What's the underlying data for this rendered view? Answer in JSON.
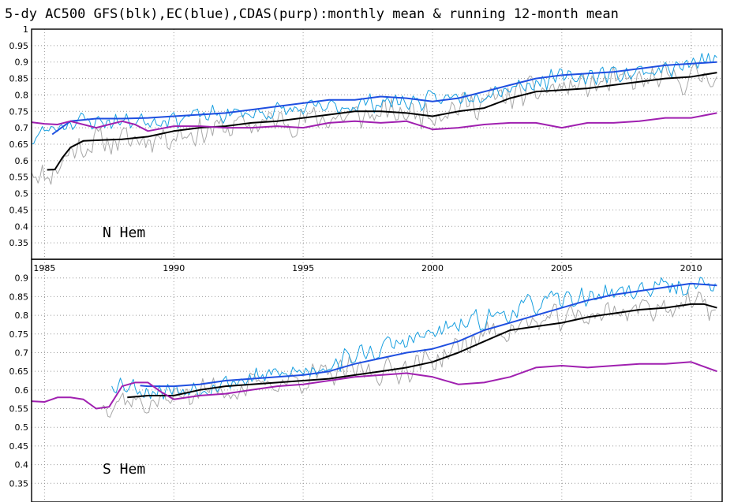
{
  "title": "5-dy AC500 GFS(blk),EC(blue),CDAS(purp):monthly mean & running 12-month mean",
  "chart_data": [
    {
      "type": "line",
      "panel_label": "N Hem",
      "xlim": [
        1984.5,
        2011.2
      ],
      "ylim": [
        0.3,
        1.0
      ],
      "xticks": [
        1985,
        1990,
        1995,
        2000,
        2005,
        2010
      ],
      "xtick_labels": [
        "1985",
        "1990",
        "1995",
        "2000",
        "2005",
        "2010"
      ],
      "yticks": [
        0.35,
        0.4,
        0.45,
        0.5,
        0.55,
        0.6,
        0.65,
        0.7,
        0.75,
        0.8,
        0.85,
        0.9,
        0.95,
        1
      ],
      "ytick_labels": [
        "0.35",
        "0.4",
        "0.45",
        "0.5",
        "0.55",
        "0.6",
        "0.65",
        "0.7",
        "0.75",
        "0.8",
        "0.85",
        "0.9",
        "0.95",
        "1"
      ],
      "grid": true,
      "series": [
        {
          "key": "gfs_monthly",
          "color": "#a8a8a8",
          "width": 1.0,
          "noise": 0.055,
          "seed": 11,
          "x": [
            1984.5,
            1985,
            1985.5,
            1986,
            1987,
            1988,
            1990,
            1992,
            1994,
            1996,
            1998,
            2000,
            2002,
            2004,
            2006,
            2008,
            2010,
            2011
          ],
          "y": [
            0.58,
            0.55,
            0.58,
            0.63,
            0.66,
            0.66,
            0.68,
            0.7,
            0.72,
            0.73,
            0.74,
            0.75,
            0.78,
            0.81,
            0.83,
            0.84,
            0.85,
            0.87
          ]
        },
        {
          "key": "ec_monthly",
          "color": "#1aa0e0",
          "width": 1.0,
          "noise": 0.035,
          "seed": 23,
          "x": [
            1984.5,
            1985,
            1986,
            1988,
            1990,
            1992,
            1994,
            1996,
            1997,
            1998,
            2000,
            2002,
            2004,
            2006,
            2008,
            2010,
            2011
          ],
          "y": [
            0.66,
            0.69,
            0.72,
            0.72,
            0.73,
            0.74,
            0.75,
            0.76,
            0.77,
            0.78,
            0.78,
            0.81,
            0.84,
            0.86,
            0.87,
            0.89,
            0.91
          ]
        },
        {
          "key": "gfs_running",
          "color": "#000000",
          "width": 2.0,
          "x": [
            1985.1,
            1985.4,
            1985.7,
            1986.0,
            1986.5,
            1987.0,
            1988.0,
            1989.0,
            1990.0,
            1991.0,
            1992.0,
            1993.0,
            1994.0,
            1995.0,
            1996.0,
            1997.0,
            1998.0,
            1999.0,
            2000.0,
            2001.0,
            2002.0,
            2003.0,
            2004.0,
            2005.0,
            2006.0,
            2007.0,
            2008.0,
            2009.0,
            2010.0,
            2011.0
          ],
          "y": [
            0.572,
            0.573,
            0.61,
            0.64,
            0.66,
            0.662,
            0.665,
            0.673,
            0.69,
            0.7,
            0.705,
            0.715,
            0.72,
            0.73,
            0.74,
            0.75,
            0.75,
            0.745,
            0.735,
            0.75,
            0.76,
            0.79,
            0.81,
            0.815,
            0.82,
            0.83,
            0.84,
            0.85,
            0.855,
            0.868
          ]
        },
        {
          "key": "ec_running",
          "color": "#1f4fe0",
          "width": 2.0,
          "x": [
            1985.3,
            1986.0,
            1987.0,
            1988.0,
            1989.0,
            1990.0,
            1991.0,
            1992.0,
            1993.0,
            1994.0,
            1995.0,
            1996.0,
            1997.0,
            1998.0,
            1999.0,
            2000.0,
            2001.0,
            2002.0,
            2003.0,
            2004.0,
            2005.0,
            2006.0,
            2007.0,
            2008.0,
            2009.0,
            2010.0,
            2011.0
          ],
          "y": [
            0.68,
            0.72,
            0.728,
            0.728,
            0.73,
            0.735,
            0.74,
            0.745,
            0.755,
            0.765,
            0.775,
            0.785,
            0.785,
            0.795,
            0.79,
            0.78,
            0.79,
            0.81,
            0.83,
            0.85,
            0.86,
            0.865,
            0.87,
            0.88,
            0.89,
            0.895,
            0.9
          ]
        },
        {
          "key": "cdas_running",
          "color": "#a020b0",
          "width": 2.0,
          "x": [
            1984.5,
            1985.0,
            1985.5,
            1986.0,
            1987.0,
            1988.0,
            1988.5,
            1989.0,
            1990.0,
            1991.0,
            1992.0,
            1993.0,
            1994.0,
            1995.0,
            1996.0,
            1997.0,
            1998.0,
            1999.0,
            2000.0,
            2001.0,
            2002.0,
            2003.0,
            2004.0,
            2005.0,
            2006.0,
            2007.0,
            2008.0,
            2009.0,
            2010.0,
            2011.0
          ],
          "y": [
            0.717,
            0.712,
            0.71,
            0.72,
            0.7,
            0.72,
            0.71,
            0.69,
            0.705,
            0.705,
            0.7,
            0.7,
            0.705,
            0.7,
            0.715,
            0.72,
            0.715,
            0.72,
            0.695,
            0.7,
            0.71,
            0.715,
            0.715,
            0.7,
            0.715,
            0.715,
            0.72,
            0.73,
            0.73,
            0.745
          ]
        }
      ]
    },
    {
      "type": "line",
      "panel_label": "S Hem",
      "xlim": [
        1984.5,
        2011.2
      ],
      "ylim": [
        0.3,
        0.95
      ],
      "xticks": [
        1985,
        1990,
        1995,
        2000,
        2005,
        2010
      ],
      "yticks": [
        0.35,
        0.4,
        0.45,
        0.5,
        0.55,
        0.6,
        0.65,
        0.7,
        0.75,
        0.8,
        0.85,
        0.9
      ],
      "ytick_labels": [
        "0.35",
        "0.4",
        "0.45",
        "0.5",
        "0.55",
        "0.6",
        "0.65",
        "0.7",
        "0.75",
        "0.8",
        "0.85",
        "0.9"
      ],
      "grid": true,
      "series": [
        {
          "key": "gfs_monthly",
          "color": "#a8a8a8",
          "width": 1.0,
          "noise": 0.045,
          "seed": 37,
          "x": [
            1987.2,
            1988,
            1989,
            1990,
            1991,
            1992,
            1993,
            1994,
            1995,
            1996,
            1997,
            1998,
            1999,
            2000,
            2001,
            2002,
            2004,
            2006,
            2008,
            2010,
            2011
          ],
          "y": [
            0.56,
            0.58,
            0.56,
            0.58,
            0.6,
            0.6,
            0.61,
            0.62,
            0.63,
            0.64,
            0.65,
            0.65,
            0.66,
            0.68,
            0.71,
            0.75,
            0.78,
            0.8,
            0.82,
            0.83,
            0.82
          ]
        },
        {
          "key": "ec_monthly",
          "color": "#1aa0e0",
          "width": 1.0,
          "noise": 0.035,
          "seed": 53,
          "x": [
            1987.6,
            1988,
            1989,
            1990,
            1991,
            1992,
            1993,
            1994,
            1995,
            1996,
            1997,
            1998,
            1999,
            2000,
            2002,
            2004,
            2006,
            2008,
            2010,
            2011
          ],
          "y": [
            0.62,
            0.62,
            0.6,
            0.6,
            0.61,
            0.62,
            0.63,
            0.64,
            0.65,
            0.67,
            0.69,
            0.71,
            0.73,
            0.75,
            0.79,
            0.83,
            0.85,
            0.87,
            0.88,
            0.89
          ]
        },
        {
          "key": "gfs_running",
          "color": "#000000",
          "width": 2.0,
          "x": [
            1988.2,
            1989.0,
            1990.0,
            1991.0,
            1992.0,
            1993.0,
            1994.0,
            1995.0,
            1996.0,
            1997.0,
            1998.0,
            1999.0,
            2000.0,
            2001.0,
            2002.0,
            2003.0,
            2004.0,
            2005.0,
            2006.0,
            2007.0,
            2008.0,
            2009.0,
            2010.0,
            2010.5,
            2011.0
          ],
          "y": [
            0.58,
            0.585,
            0.585,
            0.6,
            0.61,
            0.615,
            0.62,
            0.625,
            0.63,
            0.64,
            0.65,
            0.66,
            0.675,
            0.7,
            0.73,
            0.76,
            0.77,
            0.78,
            0.795,
            0.805,
            0.815,
            0.82,
            0.83,
            0.83,
            0.82
          ]
        },
        {
          "key": "ec_running",
          "color": "#1f4fe0",
          "width": 2.0,
          "x": [
            1988.7,
            1989.0,
            1990.0,
            1991.0,
            1992.0,
            1993.0,
            1994.0,
            1995.0,
            1996.0,
            1997.0,
            1998.0,
            1999.0,
            2000.0,
            2001.0,
            2002.0,
            2003.0,
            2004.0,
            2005.0,
            2006.0,
            2007.0,
            2008.0,
            2009.0,
            2010.0,
            2011.0
          ],
          "y": [
            0.612,
            0.61,
            0.61,
            0.615,
            0.625,
            0.63,
            0.635,
            0.64,
            0.65,
            0.67,
            0.685,
            0.7,
            0.71,
            0.73,
            0.76,
            0.78,
            0.8,
            0.82,
            0.84,
            0.855,
            0.865,
            0.875,
            0.885,
            0.88
          ]
        },
        {
          "key": "cdas_running",
          "color": "#a020b0",
          "width": 2.0,
          "x": [
            1984.5,
            1985.0,
            1985.5,
            1986.0,
            1986.5,
            1987.0,
            1987.5,
            1988.0,
            1988.5,
            1989.0,
            1989.5,
            1990.0,
            1991.0,
            1992.0,
            1993.0,
            1994.0,
            1995.0,
            1996.0,
            1997.0,
            1998.0,
            1999.0,
            2000.0,
            2001.0,
            2002.0,
            2003.0,
            2004.0,
            2005.0,
            2006.0,
            2007.0,
            2008.0,
            2009.0,
            2010.0,
            2011.0
          ],
          "y": [
            0.57,
            0.568,
            0.58,
            0.58,
            0.575,
            0.55,
            0.555,
            0.61,
            0.62,
            0.62,
            0.595,
            0.575,
            0.585,
            0.59,
            0.6,
            0.61,
            0.615,
            0.625,
            0.635,
            0.64,
            0.645,
            0.635,
            0.615,
            0.62,
            0.635,
            0.66,
            0.665,
            0.66,
            0.665,
            0.67,
            0.67,
            0.675,
            0.65
          ]
        }
      ]
    }
  ]
}
